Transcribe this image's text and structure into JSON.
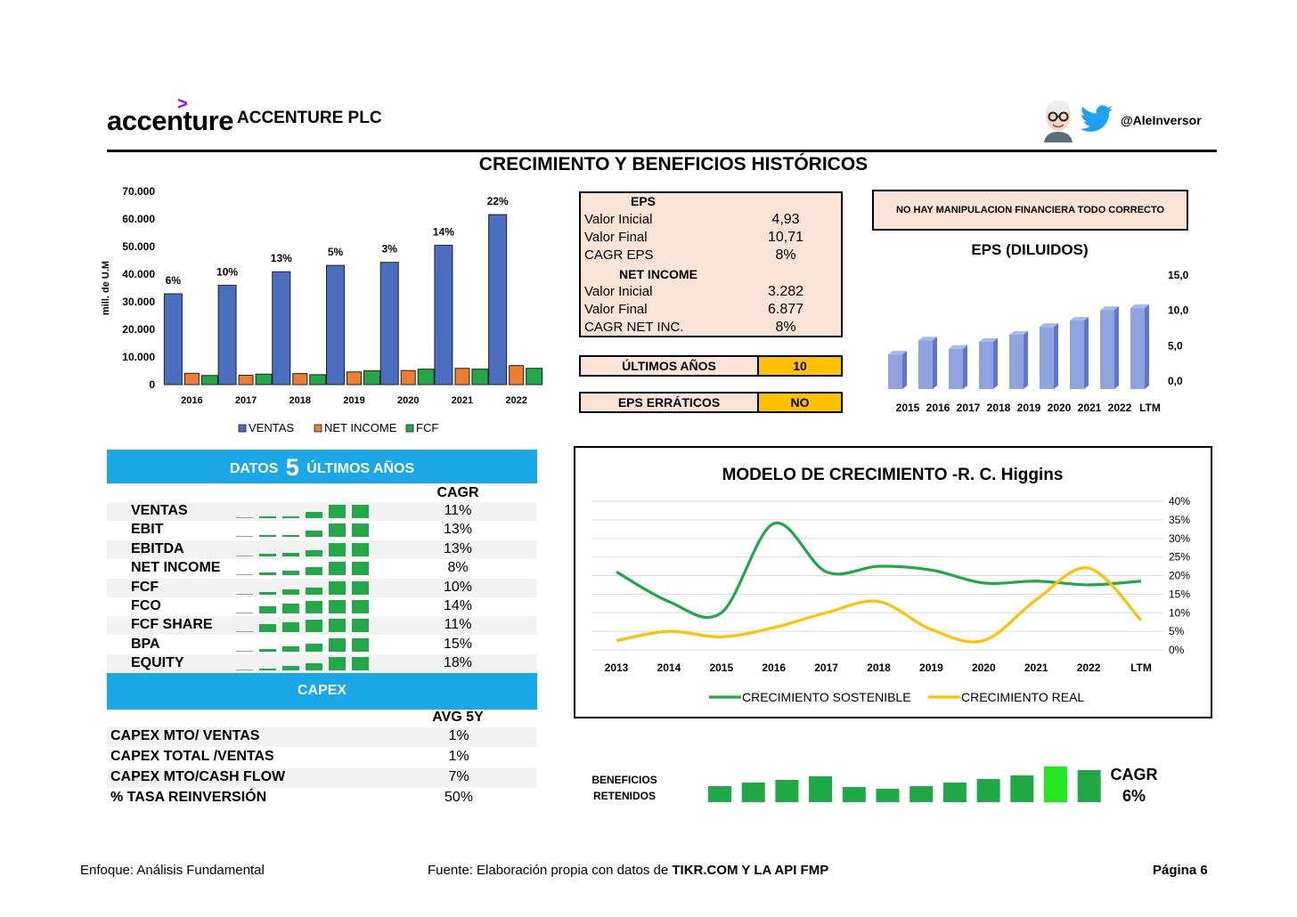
{
  "header": {
    "logo_text": "accenture",
    "company": "ACCENTURE PLC",
    "handle": "@AleInversor",
    "title": "CRECIMIENTO Y BENEFICIOS HISTÓRICOS"
  },
  "icons": {
    "avatar": "avatar-icon",
    "twitter": "twitter-bird-icon"
  },
  "colors": {
    "ventas": "#4a6fc0",
    "net_income": "#ed7d31",
    "fcf": "#22a846",
    "header_blue": "#1aa7e8",
    "highlight": "#ffc000",
    "box_fill": "#fbe4d6",
    "line_sostenible": "#1fa846",
    "line_real": "#ffc000"
  },
  "chart_data": [
    {
      "type": "bar",
      "categories": [
        "2016",
        "2017",
        "2018",
        "2019",
        "2020",
        "2021",
        "2022"
      ],
      "series": [
        {
          "name": "VENTAS",
          "values": [
            32900,
            36000,
            40900,
            43200,
            44300,
            50500,
            61600
          ]
        },
        {
          "name": "NET INCOME",
          "values": [
            4100,
            3400,
            4000,
            4600,
            5100,
            5900,
            6900
          ]
        },
        {
          "name": "FCF",
          "values": [
            3300,
            3800,
            3600,
            5000,
            5600,
            5600,
            5900
          ]
        }
      ],
      "growth_labels": [
        "6%",
        "10%",
        "13%",
        "5%",
        "3%",
        "14%",
        "22%"
      ],
      "ylabel": "mill. de U.M",
      "ylim": [
        0,
        70000
      ],
      "yticks": [
        "0",
        "10.000",
        "20.000",
        "30.000",
        "40.000",
        "50.000",
        "60.000",
        "70.000"
      ],
      "legend": "bottom"
    },
    {
      "type": "bar",
      "title": "EPS (DILUIDOS)",
      "categories": [
        "2015",
        "2016",
        "2017",
        "2018",
        "2019",
        "2020",
        "2021",
        "2022",
        "LTM"
      ],
      "values": [
        4.9,
        6.9,
        5.7,
        6.7,
        7.7,
        8.8,
        9.7,
        11.2,
        11.5
      ],
      "ylim": [
        0,
        15
      ],
      "yticks": [
        "0,0",
        "5,0",
        "10,0",
        "15,0"
      ]
    },
    {
      "type": "line",
      "title": "MODELO DE CRECIMIENTO  -R. C. Higgins",
      "x": [
        "2013",
        "2014",
        "2015",
        "2016",
        "2017",
        "2018",
        "2019",
        "2020",
        "2021",
        "2022",
        "LTM"
      ],
      "series": [
        {
          "name": "CRECIMIENTO SOSTENIBLE",
          "values": [
            21,
            13,
            10,
            34,
            21,
            22.5,
            21.5,
            18,
            18.5,
            17.5,
            18.5
          ]
        },
        {
          "name": "CRECIMIENTO REAL",
          "values": [
            2.5,
            5,
            3.5,
            6,
            10,
            13,
            5.5,
            2.5,
            13.5,
            22,
            8
          ]
        }
      ],
      "ylim": [
        0,
        40
      ],
      "yticks": [
        "0%",
        "5%",
        "10%",
        "15%",
        "20%",
        "25%",
        "30%",
        "35%",
        "40%"
      ],
      "legend": "bottom"
    },
    {
      "type": "bar",
      "title": "BENEFICIOS RETENIDOS",
      "values": [
        18,
        22,
        25,
        29,
        17,
        15,
        18,
        22,
        26,
        30,
        40,
        36
      ],
      "highlight_index": 10,
      "cagr_label": "CAGR",
      "cagr_value": "6%"
    }
  ],
  "eps_box": {
    "eps_header": "EPS",
    "rows_eps": [
      {
        "label": "Valor Inicial",
        "value": "4,93"
      },
      {
        "label": "Valor Final",
        "value": "10,71"
      },
      {
        "label": "CAGR EPS",
        "value": "8%"
      }
    ],
    "ni_header": "NET INCOME",
    "rows_ni": [
      {
        "label": "Valor Inicial",
        "value": "3.282"
      },
      {
        "label": "Valor Final",
        "value": "6.877"
      },
      {
        "label": "CAGR NET INC.",
        "value": "8%"
      }
    ]
  },
  "ultimos": {
    "label": "ÚLTIMOS AÑOS",
    "value": "10"
  },
  "erraticos": {
    "label": "EPS ERRÁTICOS",
    "value": "NO"
  },
  "note": "NO HAY MANIPULACION FINANCIERA TODO CORRECTO",
  "datos": {
    "title_pre": "DATOS",
    "title_num": "5",
    "title_post": "ÚLTIMOS AÑOS",
    "col": "CAGR",
    "rows": [
      {
        "label": "VENTAS",
        "value": "11%",
        "bars": [
          0.02,
          0.12,
          0.12,
          0.35,
          0.75,
          0.75
        ]
      },
      {
        "label": "EBIT",
        "value": "13%",
        "bars": [
          0.02,
          0.12,
          0.12,
          0.35,
          0.75,
          0.75
        ]
      },
      {
        "label": "EBITDA",
        "value": "13%",
        "bars": [
          0.02,
          0.12,
          0.18,
          0.35,
          0.75,
          0.75
        ]
      },
      {
        "label": "NET INCOME",
        "value": "8%",
        "bars": [
          0.02,
          0.18,
          0.25,
          0.45,
          0.75,
          0.75
        ]
      },
      {
        "label": "FCF",
        "value": "10%",
        "bars": [
          0.02,
          0.12,
          0.3,
          0.4,
          0.75,
          0.75
        ]
      },
      {
        "label": "FCO",
        "value": "14%",
        "bars": [
          0.02,
          0.4,
          0.55,
          0.7,
          0.75,
          0.75
        ]
      },
      {
        "label": "FCF SHARE",
        "value": "11%",
        "bars": [
          0.02,
          0.45,
          0.55,
          0.7,
          0.75,
          0.75
        ]
      },
      {
        "label": "BPA",
        "value": "15%",
        "bars": [
          0.02,
          0.12,
          0.3,
          0.45,
          0.75,
          0.75
        ]
      },
      {
        "label": "EQUITY",
        "value": "18%",
        "bars": [
          0.02,
          0.12,
          0.25,
          0.4,
          0.75,
          0.75
        ]
      }
    ]
  },
  "capex": {
    "title": "CAPEX",
    "col": "AVG 5Y",
    "rows": [
      {
        "label": "CAPEX MTO/ VENTAS",
        "value": "1%"
      },
      {
        "label": "CAPEX TOTAL /VENTAS",
        "value": "1%"
      },
      {
        "label": "CAPEX MTO/CASH FLOW",
        "value": "7%"
      },
      {
        "label": "% TASA REINVERSIÓN",
        "value": "50%"
      }
    ]
  },
  "footer": {
    "left": "Enfoque: Análisis Fundamental",
    "source_pre": "Fuente: Elaboración propia con datos de ",
    "source_bold": "TIKR.COM Y LA API FMP",
    "page": "Página 6"
  }
}
